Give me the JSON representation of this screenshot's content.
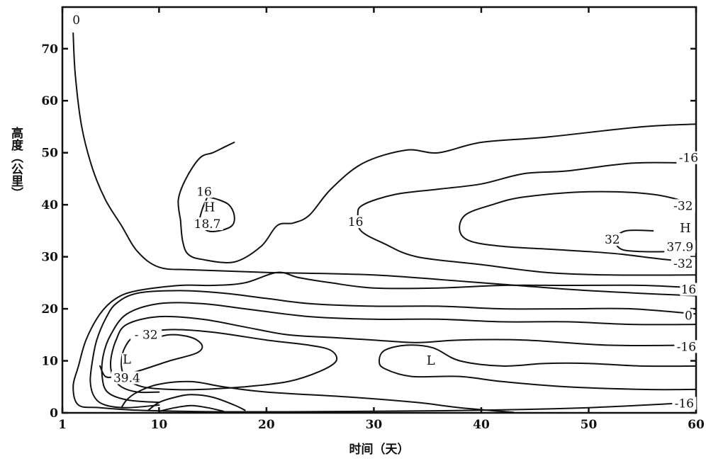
{
  "chart_data": {
    "type": "contour",
    "xlabel": "时间（天）",
    "ylabel": "高度（公里）",
    "xlim": [
      1,
      60
    ],
    "ylim": [
      0,
      78
    ],
    "x_ticks": [
      1,
      10,
      20,
      30,
      40,
      50,
      60
    ],
    "y_ticks": [
      0,
      10,
      20,
      30,
      40,
      50,
      60,
      70
    ],
    "contours": [
      {
        "level": "0",
        "points": [
          [
            2,
            73
          ],
          [
            2.2,
            65
          ],
          [
            2.8,
            55
          ],
          [
            3.8,
            47
          ],
          [
            5,
            41
          ],
          [
            6.5,
            36
          ],
          [
            8,
            31
          ],
          [
            10,
            28
          ],
          [
            13,
            27.5
          ],
          [
            20,
            27
          ],
          [
            30,
            26.5
          ],
          [
            40,
            25
          ],
          [
            50,
            23.5
          ],
          [
            60,
            22.5
          ]
        ]
      },
      {
        "level": "16",
        "points": [
          [
            12,
            37
          ],
          [
            12.2,
            33
          ],
          [
            12.7,
            30.5
          ],
          [
            14,
            29.5
          ],
          [
            17,
            29
          ],
          [
            19.5,
            32
          ],
          [
            21,
            36
          ],
          [
            22.5,
            36.5
          ],
          [
            24,
            38
          ],
          [
            26,
            43
          ],
          [
            29,
            48
          ],
          [
            33,
            50.5
          ],
          [
            36,
            50
          ],
          [
            40,
            52
          ],
          [
            46,
            53
          ],
          [
            55,
            55
          ],
          [
            60,
            55.5
          ]
        ]
      },
      {
        "level": "16",
        "points": [
          [
            12,
            37
          ],
          [
            11.8,
            41
          ],
          [
            12.5,
            45
          ],
          [
            13.8,
            49
          ],
          [
            15,
            50
          ],
          [
            16,
            51
          ],
          [
            17,
            52
          ]
        ]
      },
      {
        "level": "16",
        "points": [
          [
            60,
            48
          ],
          [
            54,
            48
          ],
          [
            48,
            46.5
          ],
          [
            44,
            46
          ],
          [
            40,
            44
          ],
          [
            36,
            43
          ],
          [
            32,
            42
          ],
          [
            29,
            40
          ],
          [
            28.5,
            38
          ],
          [
            28.8,
            35
          ],
          [
            31,
            32.5
          ],
          [
            34,
            30
          ],
          [
            40,
            28.5
          ],
          [
            46,
            27
          ],
          [
            52,
            26.5
          ],
          [
            60,
            26.5
          ]
        ]
      },
      {
        "level": "16",
        "points": [
          [
            14.5,
            41.5
          ],
          [
            15.5,
            41
          ],
          [
            16.5,
            40
          ],
          [
            17,
            38
          ],
          [
            16.8,
            36
          ],
          [
            15.6,
            35
          ],
          [
            14.5,
            35
          ],
          [
            13.8,
            36.5
          ],
          [
            14,
            39
          ],
          [
            14.5,
            41.5
          ]
        ]
      },
      {
        "level": "32",
        "points": [
          [
            60,
            40
          ],
          [
            56,
            42
          ],
          [
            50,
            42.5
          ],
          [
            44,
            41.5
          ],
          [
            41,
            40
          ],
          [
            38.5,
            38
          ],
          [
            38,
            35
          ],
          [
            39,
            33
          ],
          [
            42,
            32
          ],
          [
            46,
            31.5
          ],
          [
            50,
            31
          ],
          [
            53,
            30.5
          ],
          [
            57,
            29.5
          ],
          [
            60,
            29
          ]
        ]
      },
      {
        "level": "32",
        "points": [
          [
            56,
            35
          ],
          [
            53.5,
            35
          ],
          [
            52.5,
            33.5
          ],
          [
            53,
            31.5
          ],
          [
            55,
            31
          ],
          [
            58,
            31
          ],
          [
            60,
            31
          ]
        ]
      },
      {
        "level": "16",
        "points": [
          [
            60,
            24
          ],
          [
            55,
            24.5
          ],
          [
            48,
            24.5
          ],
          [
            42,
            24.5
          ],
          [
            36,
            24
          ],
          [
            30,
            24
          ],
          [
            26,
            25
          ],
          [
            23,
            26
          ],
          [
            21,
            27
          ],
          [
            18,
            25
          ],
          [
            15,
            24.5
          ],
          [
            12,
            24.5
          ],
          [
            8,
            23.5
          ],
          [
            6,
            22
          ],
          [
            4.5,
            19
          ],
          [
            3.2,
            14
          ],
          [
            2.5,
            9
          ],
          [
            2,
            5
          ],
          [
            2.5,
            1.5
          ],
          [
            4.5,
            1
          ],
          [
            8,
            0.5
          ],
          [
            12,
            0.3
          ],
          [
            16,
            0.2
          ],
          [
            22,
            0.2
          ],
          [
            30,
            0.3
          ],
          [
            40,
            0.5
          ],
          [
            50,
            1
          ],
          [
            60,
            2
          ]
        ]
      },
      {
        "level": "0",
        "points": [
          [
            60,
            19
          ],
          [
            54,
            20
          ],
          [
            48,
            20
          ],
          [
            42,
            20
          ],
          [
            36,
            20.5
          ],
          [
            30,
            20.5
          ],
          [
            24,
            21
          ],
          [
            20,
            22
          ],
          [
            16,
            23
          ],
          [
            12,
            23.5
          ],
          [
            8,
            23
          ],
          [
            6,
            21
          ],
          [
            5,
            18
          ],
          [
            4.2,
            14
          ],
          [
            3.8,
            10
          ],
          [
            3.6,
            6
          ],
          [
            4,
            3
          ],
          [
            5,
            1.5
          ],
          [
            7,
            1
          ],
          [
            10,
            1.5
          ]
        ]
      },
      {
        "level": "-16",
        "points": [
          [
            60,
            17
          ],
          [
            54,
            17
          ],
          [
            48,
            17.5
          ],
          [
            42,
            17.5
          ],
          [
            36,
            18
          ],
          [
            30,
            18
          ],
          [
            24,
            18.5
          ],
          [
            18,
            20
          ],
          [
            14,
            21
          ],
          [
            10,
            21
          ],
          [
            7,
            19
          ],
          [
            5.5,
            15
          ],
          [
            4.8,
            11
          ],
          [
            4.7,
            7
          ],
          [
            5.2,
            4
          ],
          [
            7,
            2.5
          ],
          [
            10,
            2
          ]
        ]
      },
      {
        "level": "-16",
        "points": [
          [
            60,
            13
          ],
          [
            52,
            13
          ],
          [
            44,
            14
          ],
          [
            38,
            14
          ],
          [
            34,
            13.5
          ],
          [
            30,
            14
          ],
          [
            26,
            14.5
          ],
          [
            22,
            15
          ],
          [
            18,
            16.5
          ],
          [
            14,
            18
          ],
          [
            10,
            18.5
          ],
          [
            7,
            17
          ],
          [
            6,
            14
          ],
          [
            5.5,
            10
          ],
          [
            5.7,
            7
          ],
          [
            6.5,
            5
          ],
          [
            8,
            4
          ],
          [
            10,
            4
          ]
        ]
      },
      {
        "level": "-32",
        "points": [
          [
            18,
            5
          ],
          [
            22,
            6
          ],
          [
            25,
            8
          ],
          [
            26.5,
            10
          ],
          [
            26,
            12
          ],
          [
            24,
            13
          ],
          [
            20,
            14
          ],
          [
            15,
            15.5
          ],
          [
            11,
            16
          ],
          [
            8,
            15
          ],
          [
            6.8,
            12.5
          ],
          [
            6.5,
            9
          ],
          [
            7,
            6.5
          ],
          [
            8.5,
            5
          ],
          [
            11,
            4.5
          ],
          [
            14,
            4.5
          ],
          [
            18,
            5
          ]
        ]
      },
      {
        "level": "-32",
        "points": [
          [
            9,
            14
          ],
          [
            11,
            15
          ],
          [
            13,
            14.5
          ],
          [
            14,
            13
          ],
          [
            13.5,
            11.5
          ],
          [
            11,
            10
          ],
          [
            8,
            8
          ],
          [
            6,
            7
          ],
          [
            5,
            7
          ],
          [
            4.5,
            9
          ]
        ]
      },
      {
        "level": "-16",
        "points": [
          [
            60,
            9
          ],
          [
            55,
            9
          ],
          [
            50,
            9.5
          ],
          [
            46,
            9.5
          ],
          [
            42,
            9
          ],
          [
            38,
            10
          ],
          [
            35.5,
            12.5
          ],
          [
            33,
            13
          ],
          [
            31,
            12
          ],
          [
            30.5,
            10
          ],
          [
            31,
            8.5
          ],
          [
            33.5,
            7
          ],
          [
            38,
            7
          ],
          [
            42,
            6
          ],
          [
            48,
            5
          ],
          [
            55,
            4.5
          ],
          [
            60,
            4.5
          ]
        ]
      },
      {
        "level": "-16",
        "points": [
          [
            9,
            0.5
          ],
          [
            10,
            2
          ],
          [
            11.5,
            3
          ],
          [
            13,
            3.5
          ],
          [
            15,
            3
          ],
          [
            17,
            1.5
          ],
          [
            18,
            0.5
          ]
        ]
      },
      {
        "level": "-16",
        "points": [
          [
            10,
            0.3
          ],
          [
            11.5,
            1
          ],
          [
            13,
            1.4
          ],
          [
            14.5,
            1
          ],
          [
            16,
            0.3
          ]
        ]
      },
      {
        "level": "-16",
        "points": [
          [
            43,
            0.1
          ],
          [
            38,
            1
          ],
          [
            34,
            2
          ],
          [
            28,
            3
          ],
          [
            20,
            4
          ],
          [
            16,
            5
          ],
          [
            13,
            6
          ],
          [
            10,
            5.5
          ],
          [
            8,
            4
          ],
          [
            7,
            2.5
          ],
          [
            6.5,
            1
          ]
        ]
      }
    ],
    "labels": [
      {
        "text": "0",
        "x": 2.3,
        "y": 75
      },
      {
        "text": "16",
        "x": 14.2,
        "y": 42
      },
      {
        "text": "H",
        "x": 14.7,
        "y": 39
      },
      {
        "text": "18.7",
        "x": 14.5,
        "y": 35.8
      },
      {
        "text": "16",
        "x": 28.3,
        "y": 36.2
      },
      {
        "text": "-16",
        "x": 59.3,
        "y": 48.5
      },
      {
        "text": "-32",
        "x": 58.8,
        "y": 39.3
      },
      {
        "text": "32",
        "x": 52.2,
        "y": 32.8
      },
      {
        "text": "H",
        "x": 59,
        "y": 35
      },
      {
        "text": "37.9",
        "x": 58.5,
        "y": 31.4
      },
      {
        "text": "-32",
        "x": 58.8,
        "y": 28.2
      },
      {
        "text": "16",
        "x": 59.3,
        "y": 23.2
      },
      {
        "text": "0",
        "x": 59.3,
        "y": 18.2
      },
      {
        "text": "-16",
        "x": 59.1,
        "y": 12.2
      },
      {
        "text": "-16",
        "x": 58.9,
        "y": 1.3
      },
      {
        "text": "- 32",
        "x": 8.8,
        "y": 14.5
      },
      {
        "text": "L",
        "x": 7,
        "y": 9.7
      },
      {
        "text": "39.4",
        "x": 7,
        "y": 6.2
      },
      {
        "text": "L",
        "x": 35.3,
        "y": 9.5
      }
    ]
  }
}
